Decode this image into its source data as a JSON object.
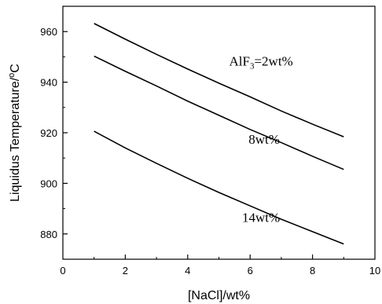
{
  "chart_data": {
    "type": "line",
    "xlabel": "[NaCl]/wt%",
    "ylabel": "Liquidus Temperature/",
    "ylabel_sup": "o",
    "ylabel_unit": "C",
    "xlim": [
      0,
      10
    ],
    "ylim": [
      870,
      970
    ],
    "x_ticks": [
      0,
      2,
      4,
      6,
      8,
      10
    ],
    "y_ticks": [
      880,
      900,
      920,
      940,
      960
    ],
    "grid": false,
    "series": [
      {
        "name": "AlF3=2wt%",
        "x": [
          1,
          2,
          3,
          4,
          5,
          6,
          7,
          8,
          9
        ],
        "values": [
          963.2,
          957.0,
          951.0,
          945.2,
          939.6,
          934.2,
          928.6,
          923.4,
          918.4
        ]
      },
      {
        "name": "8wt%",
        "x": [
          1,
          2,
          3,
          4,
          5,
          6,
          7,
          8,
          9
        ],
        "values": [
          950.3,
          944.3,
          938.5,
          932.5,
          926.9,
          921.3,
          916.1,
          910.7,
          905.5
        ]
      },
      {
        "name": "14wt%",
        "x": [
          1,
          2,
          3,
          4,
          5,
          6,
          7,
          8,
          9
        ],
        "values": [
          920.6,
          914.0,
          907.9,
          902.0,
          896.4,
          891.1,
          885.8,
          880.9,
          876.0
        ]
      }
    ],
    "annotations": [
      {
        "main": "AlF",
        "sub": "3",
        "rest": "=2wt%",
        "x": 6.35,
        "y": 946.5
      },
      {
        "main": "8wt%",
        "sub": "",
        "rest": "",
        "x": 6.45,
        "y": 915.7
      },
      {
        "main": "14wt%",
        "sub": "",
        "rest": "",
        "x": 6.35,
        "y": 884.8
      }
    ]
  }
}
